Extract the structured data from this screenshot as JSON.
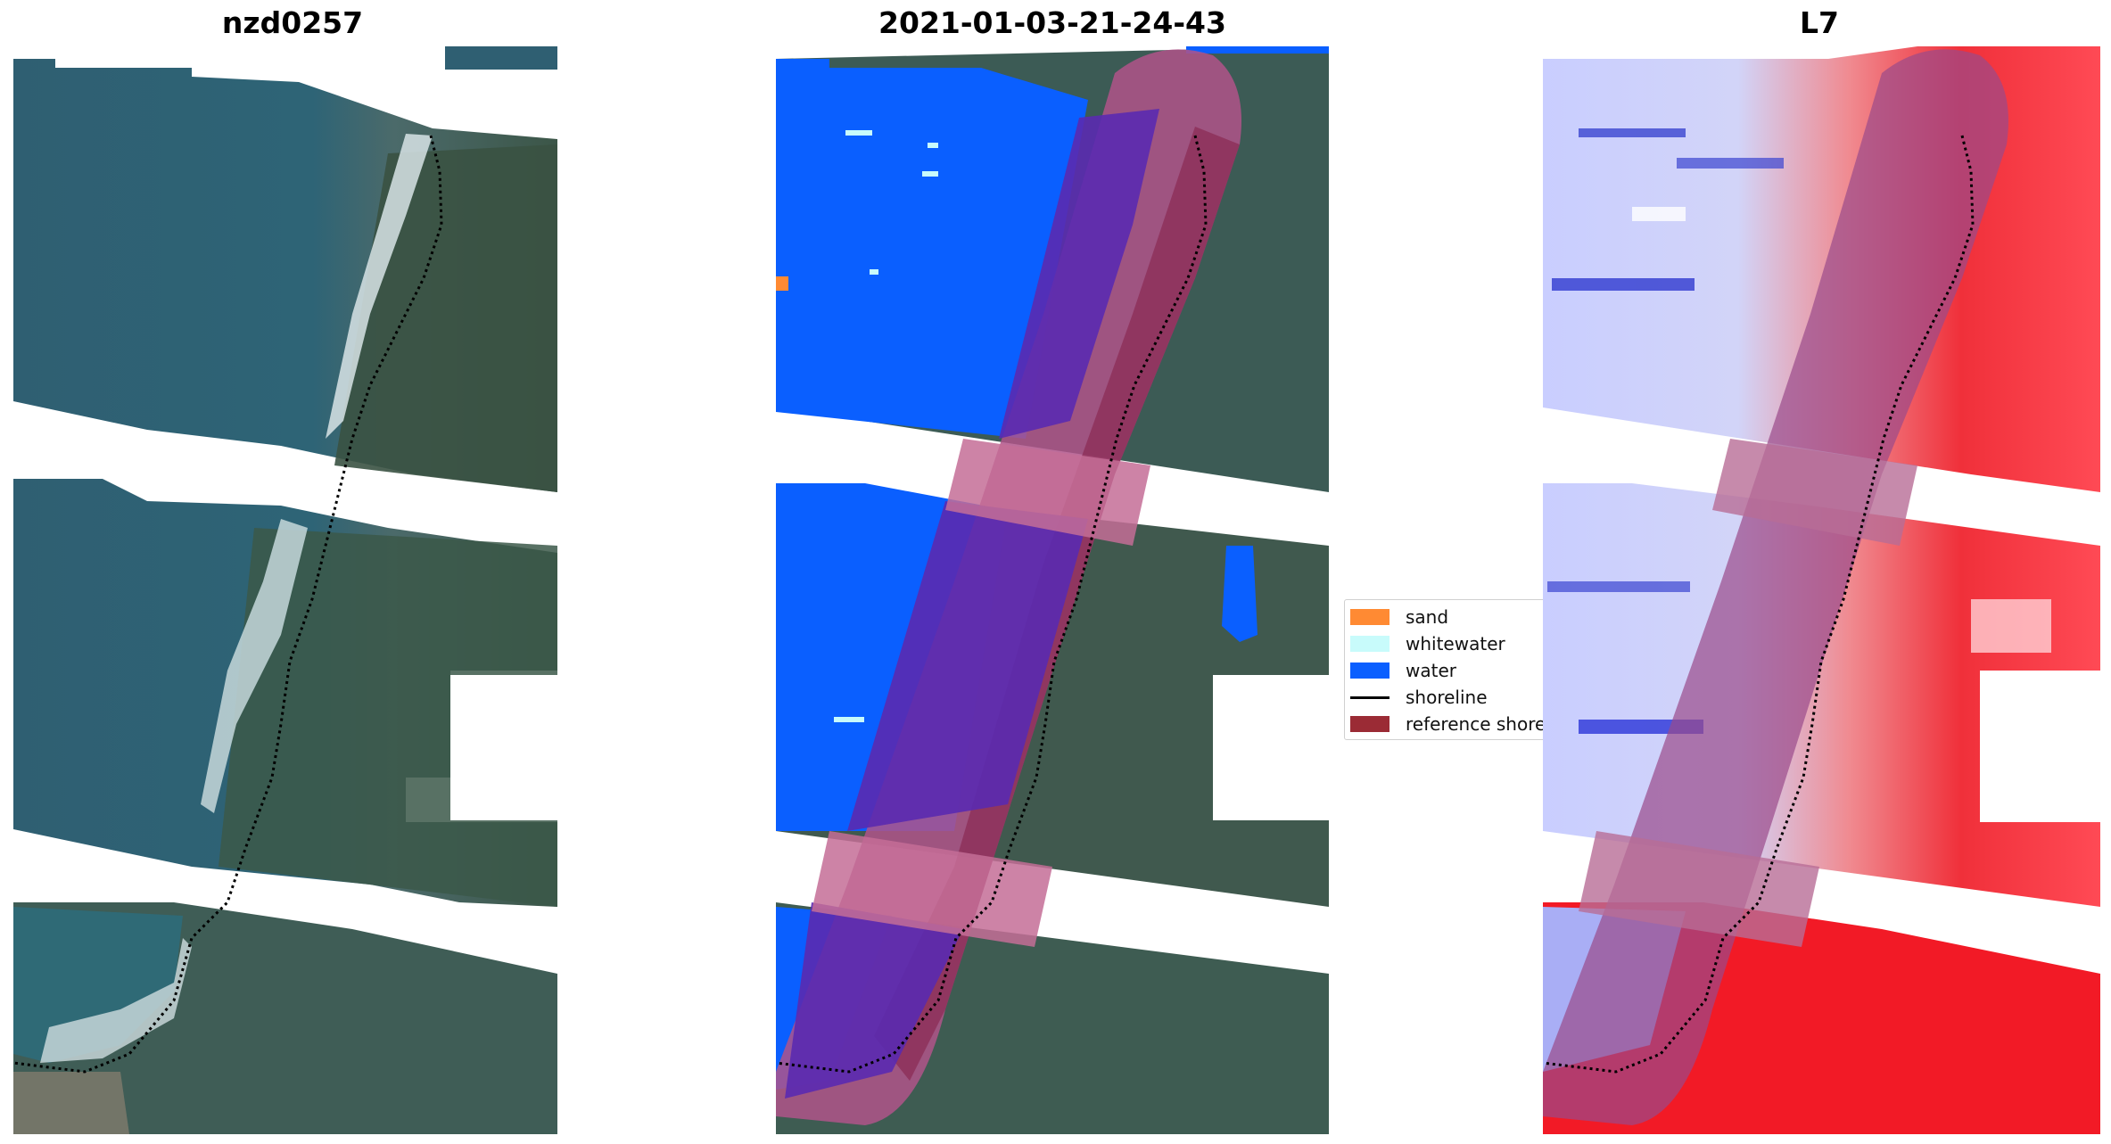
{
  "panels": [
    {
      "title": "nzd0257"
    },
    {
      "title": "2021-01-03-21-24-43"
    },
    {
      "title": "L7"
    }
  ],
  "legend": {
    "items": [
      {
        "label": "sand",
        "color": "#ff8a33",
        "kind": "patch"
      },
      {
        "label": "whitewater",
        "color": "#c8fbfb",
        "kind": "patch"
      },
      {
        "label": "water",
        "color": "#0a5fff",
        "kind": "patch"
      },
      {
        "label": "shoreline",
        "color": "#000000",
        "kind": "line"
      },
      {
        "label": "reference shoreline buffer",
        "color": "#9b2b35",
        "kind": "patch"
      }
    ]
  },
  "colors": {
    "water_class": "#0a5fff",
    "sand_class": "#ff8a33",
    "whitewater_class": "#c8fbfb",
    "buffer": "#b0548a",
    "land_green": "#3f5f4c",
    "sea_teal": "#2e6276",
    "index_blue": "#c9ceff",
    "index_red": "#f0202e"
  }
}
